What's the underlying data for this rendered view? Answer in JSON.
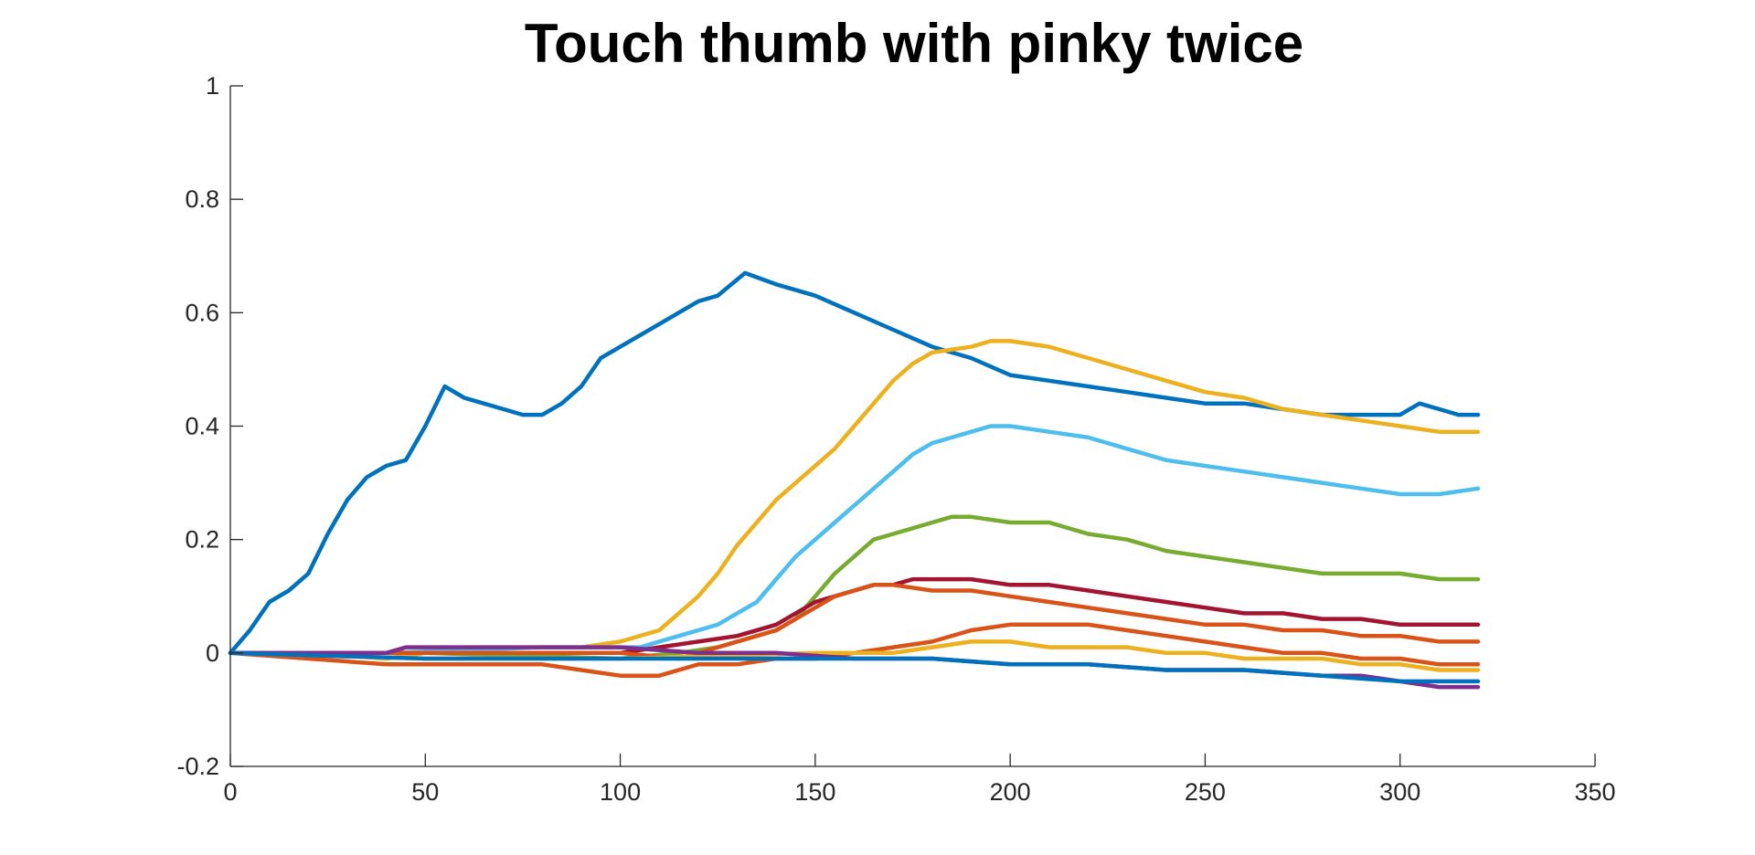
{
  "chart_data": {
    "type": "line",
    "title": "Touch thumb with pinky twice",
    "xlabel": "",
    "ylabel": "",
    "xlim": [
      0,
      350
    ],
    "ylim": [
      -0.2,
      1
    ],
    "xticks": [
      0,
      50,
      100,
      150,
      200,
      250,
      300,
      350
    ],
    "yticks": [
      -0.2,
      0,
      0.2,
      0.4,
      0.6,
      0.8,
      1
    ],
    "xtick_labels": [
      "0",
      "50",
      "100",
      "150",
      "200",
      "250",
      "300",
      "350"
    ],
    "ytick_labels": [
      "-0.2",
      "0",
      "0.2",
      "0.4",
      "0.6",
      "0.8",
      "1"
    ],
    "grid": false,
    "series": [
      {
        "color": "#0072BD",
        "points": [
          [
            0,
            0
          ],
          [
            5,
            0.04
          ],
          [
            10,
            0.09
          ],
          [
            15,
            0.11
          ],
          [
            20,
            0.14
          ],
          [
            25,
            0.21
          ],
          [
            30,
            0.27
          ],
          [
            35,
            0.31
          ],
          [
            40,
            0.33
          ],
          [
            45,
            0.34
          ],
          [
            50,
            0.4
          ],
          [
            55,
            0.47
          ],
          [
            60,
            0.45
          ],
          [
            65,
            0.44
          ],
          [
            70,
            0.43
          ],
          [
            75,
            0.42
          ],
          [
            80,
            0.42
          ],
          [
            85,
            0.44
          ],
          [
            90,
            0.47
          ],
          [
            95,
            0.52
          ],
          [
            100,
            0.54
          ],
          [
            105,
            0.56
          ],
          [
            110,
            0.58
          ],
          [
            115,
            0.6
          ],
          [
            120,
            0.62
          ],
          [
            125,
            0.63
          ],
          [
            132,
            0.67
          ],
          [
            140,
            0.65
          ],
          [
            150,
            0.63
          ],
          [
            160,
            0.6
          ],
          [
            170,
            0.57
          ],
          [
            180,
            0.54
          ],
          [
            190,
            0.52
          ],
          [
            200,
            0.49
          ],
          [
            210,
            0.48
          ],
          [
            220,
            0.47
          ],
          [
            230,
            0.46
          ],
          [
            240,
            0.45
          ],
          [
            250,
            0.44
          ],
          [
            260,
            0.44
          ],
          [
            270,
            0.43
          ],
          [
            280,
            0.42
          ],
          [
            290,
            0.42
          ],
          [
            300,
            0.42
          ],
          [
            305,
            0.44
          ],
          [
            310,
            0.43
          ],
          [
            315,
            0.42
          ],
          [
            320,
            0.42
          ]
        ]
      },
      {
        "color": "#EDB120",
        "points": [
          [
            0,
            0
          ],
          [
            20,
            0
          ],
          [
            40,
            -0.01
          ],
          [
            60,
            0.01
          ],
          [
            80,
            0.01
          ],
          [
            90,
            0.01
          ],
          [
            100,
            0.02
          ],
          [
            110,
            0.04
          ],
          [
            115,
            0.07
          ],
          [
            120,
            0.1
          ],
          [
            125,
            0.14
          ],
          [
            130,
            0.19
          ],
          [
            135,
            0.23
          ],
          [
            140,
            0.27
          ],
          [
            145,
            0.3
          ],
          [
            150,
            0.33
          ],
          [
            155,
            0.36
          ],
          [
            160,
            0.4
          ],
          [
            165,
            0.44
          ],
          [
            170,
            0.48
          ],
          [
            175,
            0.51
          ],
          [
            180,
            0.53
          ],
          [
            190,
            0.54
          ],
          [
            195,
            0.55
          ],
          [
            200,
            0.55
          ],
          [
            210,
            0.54
          ],
          [
            220,
            0.52
          ],
          [
            230,
            0.5
          ],
          [
            240,
            0.48
          ],
          [
            250,
            0.46
          ],
          [
            260,
            0.45
          ],
          [
            270,
            0.43
          ],
          [
            280,
            0.42
          ],
          [
            290,
            0.41
          ],
          [
            300,
            0.4
          ],
          [
            310,
            0.39
          ],
          [
            320,
            0.39
          ]
        ]
      },
      {
        "color": "#4DBEEE",
        "points": [
          [
            0,
            0
          ],
          [
            40,
            0
          ],
          [
            80,
            0.01
          ],
          [
            100,
            0.01
          ],
          [
            105,
            0.01
          ],
          [
            110,
            0.02
          ],
          [
            115,
            0.03
          ],
          [
            120,
            0.04
          ],
          [
            125,
            0.05
          ],
          [
            130,
            0.07
          ],
          [
            135,
            0.09
          ],
          [
            140,
            0.13
          ],
          [
            145,
            0.17
          ],
          [
            150,
            0.2
          ],
          [
            155,
            0.23
          ],
          [
            160,
            0.26
          ],
          [
            165,
            0.29
          ],
          [
            170,
            0.32
          ],
          [
            175,
            0.35
          ],
          [
            180,
            0.37
          ],
          [
            185,
            0.38
          ],
          [
            190,
            0.39
          ],
          [
            195,
            0.4
          ],
          [
            200,
            0.4
          ],
          [
            210,
            0.39
          ],
          [
            220,
            0.38
          ],
          [
            230,
            0.36
          ],
          [
            240,
            0.34
          ],
          [
            250,
            0.33
          ],
          [
            260,
            0.32
          ],
          [
            270,
            0.31
          ],
          [
            280,
            0.3
          ],
          [
            290,
            0.29
          ],
          [
            300,
            0.28
          ],
          [
            310,
            0.28
          ],
          [
            320,
            0.29
          ]
        ]
      },
      {
        "color": "#77AC30",
        "points": [
          [
            0,
            0
          ],
          [
            50,
            0
          ],
          [
            100,
            -0.01
          ],
          [
            115,
            0
          ],
          [
            125,
            0.01
          ],
          [
            135,
            0.03
          ],
          [
            140,
            0.04
          ],
          [
            145,
            0.06
          ],
          [
            150,
            0.1
          ],
          [
            155,
            0.14
          ],
          [
            160,
            0.17
          ],
          [
            165,
            0.2
          ],
          [
            170,
            0.21
          ],
          [
            175,
            0.22
          ],
          [
            180,
            0.23
          ],
          [
            185,
            0.24
          ],
          [
            190,
            0.24
          ],
          [
            200,
            0.23
          ],
          [
            210,
            0.23
          ],
          [
            220,
            0.21
          ],
          [
            230,
            0.2
          ],
          [
            240,
            0.18
          ],
          [
            250,
            0.17
          ],
          [
            260,
            0.16
          ],
          [
            270,
            0.15
          ],
          [
            280,
            0.14
          ],
          [
            290,
            0.14
          ],
          [
            300,
            0.14
          ],
          [
            310,
            0.13
          ],
          [
            320,
            0.13
          ]
        ]
      },
      {
        "color": "#A2142F",
        "points": [
          [
            0,
            0
          ],
          [
            50,
            0
          ],
          [
            100,
            0
          ],
          [
            110,
            0.01
          ],
          [
            120,
            0.02
          ],
          [
            130,
            0.03
          ],
          [
            140,
            0.05
          ],
          [
            145,
            0.07
          ],
          [
            150,
            0.09
          ],
          [
            155,
            0.1
          ],
          [
            160,
            0.11
          ],
          [
            165,
            0.12
          ],
          [
            170,
            0.12
          ],
          [
            175,
            0.13
          ],
          [
            180,
            0.13
          ],
          [
            190,
            0.13
          ],
          [
            200,
            0.12
          ],
          [
            210,
            0.12
          ],
          [
            220,
            0.11
          ],
          [
            230,
            0.1
          ],
          [
            240,
            0.09
          ],
          [
            250,
            0.08
          ],
          [
            260,
            0.07
          ],
          [
            270,
            0.07
          ],
          [
            280,
            0.06
          ],
          [
            290,
            0.06
          ],
          [
            300,
            0.05
          ],
          [
            310,
            0.05
          ],
          [
            320,
            0.05
          ]
        ]
      },
      {
        "color": "#D95319",
        "points": [
          [
            0,
            0
          ],
          [
            50,
            0
          ],
          [
            100,
            0
          ],
          [
            115,
            -0.01
          ],
          [
            125,
            0.01
          ],
          [
            135,
            0.03
          ],
          [
            140,
            0.04
          ],
          [
            145,
            0.06
          ],
          [
            150,
            0.08
          ],
          [
            155,
            0.1
          ],
          [
            160,
            0.11
          ],
          [
            165,
            0.12
          ],
          [
            170,
            0.12
          ],
          [
            180,
            0.11
          ],
          [
            190,
            0.11
          ],
          [
            200,
            0.1
          ],
          [
            210,
            0.09
          ],
          [
            220,
            0.08
          ],
          [
            230,
            0.07
          ],
          [
            240,
            0.06
          ],
          [
            250,
            0.05
          ],
          [
            260,
            0.05
          ],
          [
            270,
            0.04
          ],
          [
            280,
            0.04
          ],
          [
            290,
            0.03
          ],
          [
            300,
            0.03
          ],
          [
            310,
            0.02
          ],
          [
            320,
            0.02
          ]
        ]
      },
      {
        "color": "#D95319",
        "points": [
          [
            0,
            0
          ],
          [
            20,
            -0.01
          ],
          [
            40,
            -0.02
          ],
          [
            60,
            -0.02
          ],
          [
            80,
            -0.02
          ],
          [
            90,
            -0.03
          ],
          [
            100,
            -0.04
          ],
          [
            110,
            -0.04
          ],
          [
            115,
            -0.03
          ],
          [
            120,
            -0.02
          ],
          [
            130,
            -0.02
          ],
          [
            140,
            -0.01
          ],
          [
            150,
            -0.01
          ],
          [
            160,
            0
          ],
          [
            170,
            0.01
          ],
          [
            180,
            0.02
          ],
          [
            190,
            0.04
          ],
          [
            200,
            0.05
          ],
          [
            210,
            0.05
          ],
          [
            220,
            0.05
          ],
          [
            230,
            0.04
          ],
          [
            240,
            0.03
          ],
          [
            250,
            0.02
          ],
          [
            260,
            0.01
          ],
          [
            270,
            0
          ],
          [
            280,
            0
          ],
          [
            290,
            -0.01
          ],
          [
            300,
            -0.01
          ],
          [
            310,
            -0.02
          ],
          [
            320,
            -0.02
          ]
        ]
      },
      {
        "color": "#EDB120",
        "points": [
          [
            0,
            0
          ],
          [
            50,
            -0.01
          ],
          [
            100,
            -0.01
          ],
          [
            150,
            0
          ],
          [
            170,
            0
          ],
          [
            180,
            0.01
          ],
          [
            190,
            0.02
          ],
          [
            200,
            0.02
          ],
          [
            210,
            0.01
          ],
          [
            220,
            0.01
          ],
          [
            230,
            0.01
          ],
          [
            240,
            0
          ],
          [
            250,
            0
          ],
          [
            260,
            -0.01
          ],
          [
            270,
            -0.01
          ],
          [
            280,
            -0.01
          ],
          [
            290,
            -0.02
          ],
          [
            300,
            -0.02
          ],
          [
            310,
            -0.03
          ],
          [
            320,
            -0.03
          ]
        ]
      },
      {
        "color": "#7E2F8E",
        "points": [
          [
            0,
            0
          ],
          [
            20,
            0
          ],
          [
            40,
            0
          ],
          [
            45,
            0.01
          ],
          [
            60,
            0.01
          ],
          [
            80,
            0.01
          ],
          [
            100,
            0.01
          ],
          [
            120,
            0
          ],
          [
            140,
            0
          ],
          [
            160,
            -0.01
          ],
          [
            180,
            -0.01
          ],
          [
            200,
            -0.02
          ],
          [
            220,
            -0.02
          ],
          [
            240,
            -0.03
          ],
          [
            260,
            -0.03
          ],
          [
            280,
            -0.04
          ],
          [
            290,
            -0.04
          ],
          [
            300,
            -0.05
          ],
          [
            310,
            -0.06
          ],
          [
            320,
            -0.06
          ]
        ]
      },
      {
        "color": "#0072BD",
        "points": [
          [
            0,
            0
          ],
          [
            50,
            -0.01
          ],
          [
            100,
            -0.01
          ],
          [
            150,
            -0.01
          ],
          [
            180,
            -0.01
          ],
          [
            200,
            -0.02
          ],
          [
            220,
            -0.02
          ],
          [
            240,
            -0.03
          ],
          [
            260,
            -0.03
          ],
          [
            280,
            -0.04
          ],
          [
            300,
            -0.05
          ],
          [
            310,
            -0.05
          ],
          [
            320,
            -0.05
          ]
        ]
      }
    ]
  }
}
